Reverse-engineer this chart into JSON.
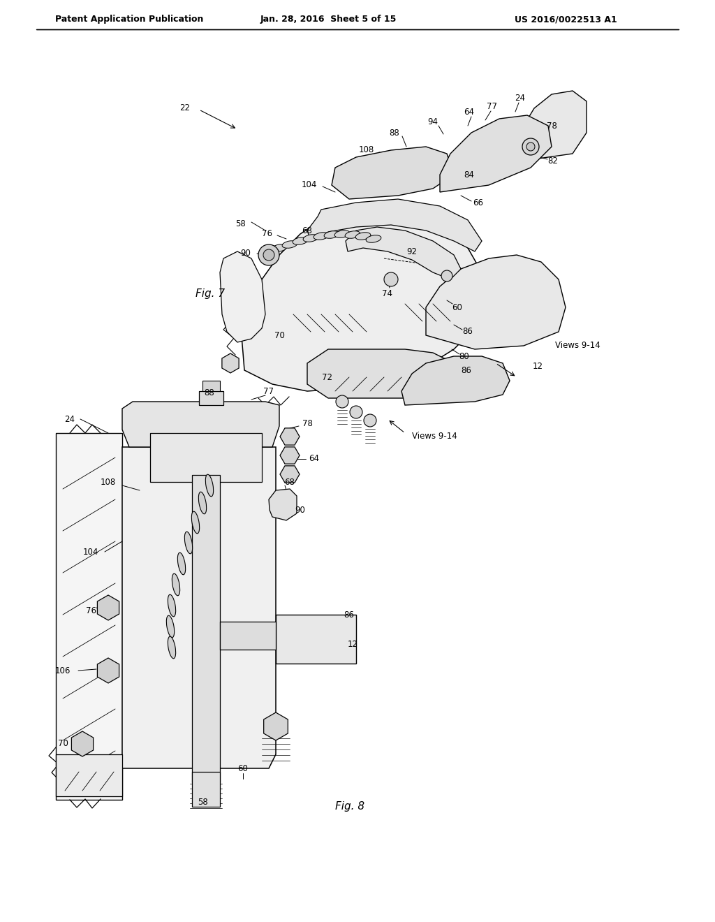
{
  "header_left": "Patent Application Publication",
  "header_center": "Jan. 28, 2016  Sheet 5 of 15",
  "header_right": "US 2016/0022513 A1",
  "background_color": "#ffffff",
  "line_color": "#000000",
  "fig7_label": "Fig. 7",
  "fig8_label": "Fig. 8",
  "views_label": "Views 9-14"
}
